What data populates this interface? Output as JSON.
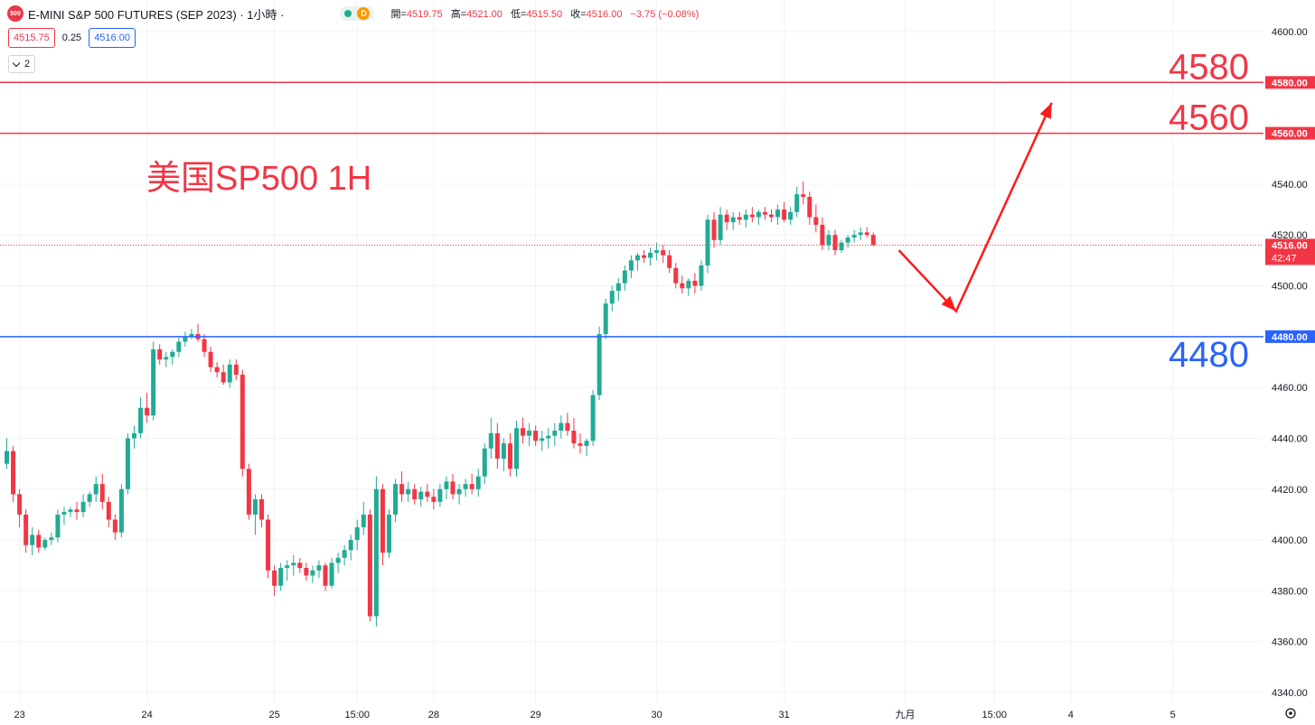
{
  "header": {
    "symbol_logo": "500",
    "title": "E-MINI S&P 500 FUTURES (SEP 2023) · 1小時 ·",
    "status_badge": "D",
    "ohlc": [
      {
        "label": "開=",
        "value": "4519.75"
      },
      {
        "label": "高=",
        "value": "4521.00"
      },
      {
        "label": "低=",
        "value": "4515.50"
      },
      {
        "label": "收=",
        "value": "4516.00"
      },
      {
        "label": "",
        "value": "−3.75 (−0.08%)"
      }
    ]
  },
  "trade": {
    "sell_price": "4515.75",
    "spread": "0.25",
    "buy_price": "4516.00"
  },
  "indicators": {
    "collapsed_count": "2"
  },
  "colors": {
    "up": "#22ab94",
    "down": "#f23645",
    "resistance": "#f23645",
    "support": "#2962ff",
    "annotation_red": "#f23645",
    "annotation_blue": "#2962ff",
    "arrow": "#ff1a1a"
  },
  "chart_data": {
    "type": "candlestick",
    "title": "美国SP500 1H",
    "ylim": [
      4340,
      4600
    ],
    "y_ticks": [
      "4600.00",
      "4580.00",
      "4560.00",
      "4540.00",
      "4520.00",
      "4500.00",
      "4480.00",
      "4460.00",
      "4440.00",
      "4420.00",
      "4400.00",
      "4380.00",
      "4360.00",
      "4340.00"
    ],
    "x_ticks": [
      {
        "label": "23",
        "index": 2
      },
      {
        "label": "24",
        "index": 22
      },
      {
        "label": "25",
        "index": 42
      },
      {
        "label": "15:00",
        "index": 55
      },
      {
        "label": "28",
        "index": 67
      },
      {
        "label": "29",
        "index": 83
      },
      {
        "label": "30",
        "index": 102
      },
      {
        "label": "31",
        "index": 122
      },
      {
        "label": "九月",
        "index": 141
      },
      {
        "label": "15:00",
        "index": 155
      },
      {
        "label": "4",
        "index": 167
      },
      {
        "label": "5",
        "index": 183
      }
    ],
    "candles": [
      [
        4430,
        4440,
        4428,
        4435
      ],
      [
        4435,
        4437,
        4415,
        4418
      ],
      [
        4418,
        4420,
        4405,
        4410
      ],
      [
        4410,
        4412,
        4395,
        4398
      ],
      [
        4398,
        4405,
        4394,
        4402
      ],
      [
        4402,
        4404,
        4395,
        4397
      ],
      [
        4397,
        4401,
        4396,
        4400
      ],
      [
        4400,
        4403,
        4398,
        4401
      ],
      [
        4401,
        4412,
        4399,
        4410
      ],
      [
        4410,
        4413,
        4406,
        4411
      ],
      [
        4411,
        4413,
        4409,
        4412
      ],
      [
        4412,
        4415,
        4408,
        4411
      ],
      [
        4411,
        4418,
        4409,
        4415
      ],
      [
        4415,
        4419,
        4413,
        4418
      ],
      [
        4418,
        4425,
        4415,
        4422
      ],
      [
        4422,
        4426,
        4412,
        4415
      ],
      [
        4415,
        4417,
        4405,
        4408
      ],
      [
        4408,
        4410,
        4400,
        4403
      ],
      [
        4403,
        4422,
        4401,
        4420
      ],
      [
        4420,
        4442,
        4418,
        4440
      ],
      [
        4440,
        4445,
        4436,
        4442
      ],
      [
        4442,
        4456,
        4440,
        4452
      ],
      [
        4452,
        4458,
        4446,
        4449
      ],
      [
        4449,
        4478,
        4447,
        4475
      ],
      [
        4475,
        4477,
        4469,
        4471
      ],
      [
        4471,
        4474,
        4468,
        4472
      ],
      [
        4472,
        4475,
        4469,
        4474
      ],
      [
        4474,
        4480,
        4472,
        4478
      ],
      [
        4478,
        4482,
        4476,
        4480
      ],
      [
        4480,
        4483,
        4479,
        4481
      ],
      [
        4481,
        4485,
        4478,
        4479
      ],
      [
        4479,
        4481,
        4472,
        4474
      ],
      [
        4474,
        4476,
        4466,
        4468
      ],
      [
        4468,
        4470,
        4464,
        4466
      ],
      [
        4466,
        4469,
        4461,
        4462
      ],
      [
        4462,
        4471,
        4460,
        4469
      ],
      [
        4469,
        4471,
        4463,
        4465
      ],
      [
        4465,
        4467,
        4425,
        4428
      ],
      [
        4428,
        4430,
        4408,
        4410
      ],
      [
        4410,
        4418,
        4402,
        4416
      ],
      [
        4416,
        4418,
        4405,
        4408
      ],
      [
        4408,
        4410,
        4385,
        4388
      ],
      [
        4388,
        4390,
        4378,
        4382
      ],
      [
        4382,
        4391,
        4380,
        4389
      ],
      [
        4389,
        4392,
        4384,
        4390
      ],
      [
        4390,
        4394,
        4386,
        4391
      ],
      [
        4391,
        4393,
        4387,
        4389
      ],
      [
        4389,
        4391,
        4384,
        4386
      ],
      [
        4386,
        4390,
        4383,
        4388
      ],
      [
        4388,
        4392,
        4385,
        4390
      ],
      [
        4390,
        4391,
        4380,
        4382
      ],
      [
        4382,
        4393,
        4381,
        4391
      ],
      [
        4391,
        4395,
        4387,
        4393
      ],
      [
        4393,
        4398,
        4390,
        4396
      ],
      [
        4396,
        4402,
        4392,
        4400
      ],
      [
        4400,
        4408,
        4396,
        4405
      ],
      [
        4405,
        4415,
        4402,
        4410
      ],
      [
        4410,
        4412,
        4368,
        4370
      ],
      [
        4370,
        4425,
        4366,
        4420
      ],
      [
        4420,
        4422,
        4390,
        4395
      ],
      [
        4395,
        4412,
        4393,
        4410
      ],
      [
        4410,
        4424,
        4407,
        4422
      ],
      [
        4422,
        4427,
        4415,
        4418
      ],
      [
        4418,
        4423,
        4415,
        4420
      ],
      [
        4420,
        4422,
        4414,
        4416
      ],
      [
        4416,
        4421,
        4413,
        4419
      ],
      [
        4419,
        4422,
        4415,
        4417
      ],
      [
        4417,
        4420,
        4412,
        4415
      ],
      [
        4415,
        4422,
        4413,
        4420
      ],
      [
        4420,
        4425,
        4416,
        4423
      ],
      [
        4423,
        4426,
        4416,
        4418
      ],
      [
        4418,
        4422,
        4414,
        4420
      ],
      [
        4420,
        4424,
        4417,
        4422
      ],
      [
        4422,
        4426,
        4418,
        4420
      ],
      [
        4420,
        4428,
        4417,
        4425
      ],
      [
        4425,
        4438,
        4422,
        4436
      ],
      [
        4436,
        4448,
        4432,
        4442
      ],
      [
        4442,
        4446,
        4428,
        4432
      ],
      [
        4432,
        4440,
        4427,
        4438
      ],
      [
        4438,
        4442,
        4425,
        4428
      ],
      [
        4428,
        4447,
        4425,
        4444
      ],
      [
        4444,
        4448,
        4438,
        4441
      ],
      [
        4441,
        4446,
        4437,
        4443
      ],
      [
        4443,
        4445,
        4437,
        4439
      ],
      [
        4439,
        4443,
        4435,
        4440
      ],
      [
        4440,
        4444,
        4436,
        4441
      ],
      [
        4441,
        4446,
        4437,
        4443
      ],
      [
        4443,
        4449,
        4440,
        4446
      ],
      [
        4446,
        4450,
        4441,
        4443
      ],
      [
        4443,
        4448,
        4436,
        4438
      ],
      [
        4438,
        4442,
        4434,
        4437
      ],
      [
        4437,
        4440,
        4433,
        4439
      ],
      [
        4439,
        4459,
        4437,
        4457
      ],
      [
        4457,
        4484,
        4455,
        4481
      ],
      [
        4481,
        4495,
        4479,
        4493
      ],
      [
        4493,
        4500,
        4490,
        4498
      ],
      [
        4498,
        4503,
        4494,
        4501
      ],
      [
        4501,
        4508,
        4498,
        4506
      ],
      [
        4506,
        4512,
        4503,
        4510
      ],
      [
        4510,
        4513,
        4506,
        4512
      ],
      [
        4512,
        4514,
        4509,
        4511
      ],
      [
        4511,
        4515,
        4508,
        4513
      ],
      [
        4513,
        4517,
        4510,
        4514
      ],
      [
        4514,
        4516,
        4509,
        4512
      ],
      [
        4512,
        4514,
        4505,
        4507
      ],
      [
        4507,
        4509,
        4499,
        4501
      ],
      [
        4501,
        4504,
        4497,
        4499
      ],
      [
        4499,
        4503,
        4496,
        4502
      ],
      [
        4502,
        4505,
        4497,
        4500
      ],
      [
        4500,
        4510,
        4498,
        4508
      ],
      [
        4508,
        4528,
        4505,
        4526
      ],
      [
        4526,
        4529,
        4515,
        4518
      ],
      [
        4518,
        4531,
        4516,
        4528
      ],
      [
        4528,
        4530,
        4522,
        4525
      ],
      [
        4525,
        4529,
        4522,
        4527
      ],
      [
        4527,
        4529,
        4524,
        4526
      ],
      [
        4526,
        4530,
        4523,
        4528
      ],
      [
        4528,
        4531,
        4525,
        4527
      ],
      [
        4527,
        4530,
        4524,
        4529
      ],
      [
        4529,
        4531,
        4526,
        4528
      ],
      [
        4528,
        4530,
        4525,
        4527
      ],
      [
        4527,
        4532,
        4524,
        4530
      ],
      [
        4530,
        4533,
        4525,
        4526
      ],
      [
        4526,
        4531,
        4524,
        4529
      ],
      [
        4529,
        4539,
        4527,
        4536
      ],
      [
        4536,
        4541,
        4532,
        4535
      ],
      [
        4535,
        4537,
        4524,
        4527
      ],
      [
        4527,
        4532,
        4521,
        4524
      ],
      [
        4524,
        4527,
        4514,
        4516
      ],
      [
        4516,
        4522,
        4514,
        4520
      ],
      [
        4520,
        4522,
        4512,
        4514
      ],
      [
        4514,
        4518,
        4513,
        4517
      ],
      [
        4517,
        4520,
        4515,
        4519
      ],
      [
        4519,
        4522,
        4517,
        4520
      ],
      [
        4520,
        4523,
        4518,
        4521
      ],
      [
        4521,
        4523,
        4519,
        4520
      ],
      [
        4520,
        4521,
        4515.5,
        4516
      ]
    ],
    "reference_lines": [
      {
        "value": 4580,
        "label": "4580",
        "axis_label": "4580.00",
        "kind": "resistance"
      },
      {
        "value": 4560,
        "label": "4560",
        "axis_label": "4560.00",
        "kind": "resistance"
      },
      {
        "value": 4480,
        "label": "4480",
        "axis_label": "4480.00",
        "kind": "support"
      }
    ],
    "current_price": {
      "value": 4516,
      "label": "4516.00",
      "countdown": "42:47"
    },
    "projection": [
      {
        "index": 140,
        "price": 4514
      },
      {
        "index": 149,
        "price": 4490
      },
      {
        "index": 164,
        "price": 4572
      }
    ]
  }
}
